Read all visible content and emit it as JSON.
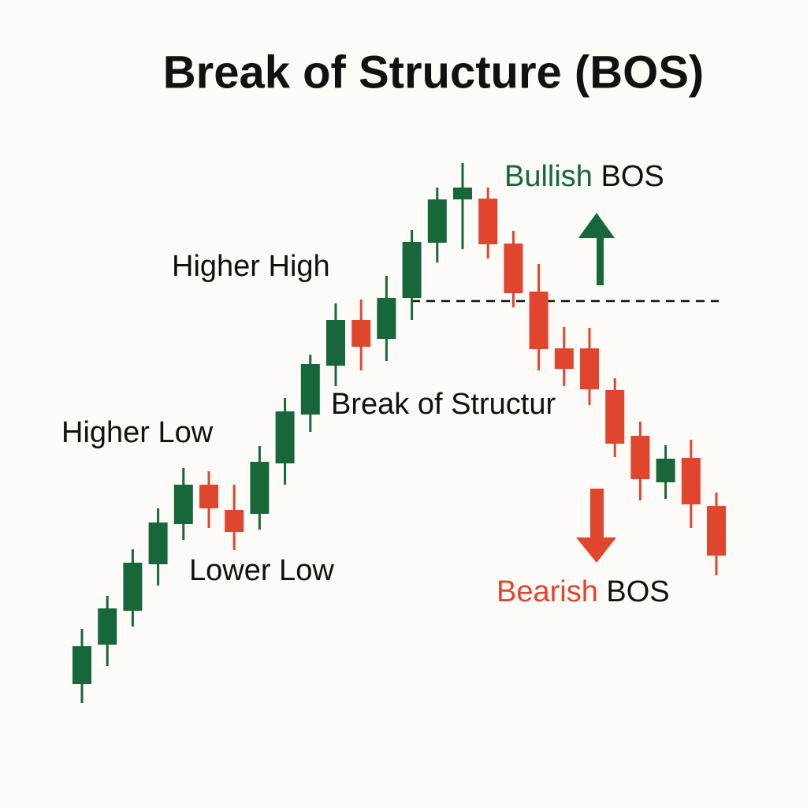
{
  "chart_data": {
    "type": "candlestick",
    "title": "Break of Structure (BOS)",
    "up_color": "#17673a",
    "down_color": "#e0452d",
    "ylim": [
      0,
      1000
    ],
    "candles": [
      {
        "open": 132,
        "high": 202,
        "low": 108,
        "close": 180
      },
      {
        "open": 182,
        "high": 244,
        "low": 155,
        "close": 228
      },
      {
        "open": 225,
        "high": 303,
        "low": 205,
        "close": 286
      },
      {
        "open": 284,
        "high": 355,
        "low": 257,
        "close": 337
      },
      {
        "open": 335,
        "high": 406,
        "low": 315,
        "close": 385
      },
      {
        "open": 385,
        "high": 402,
        "low": 330,
        "close": 355
      },
      {
        "open": 353,
        "high": 385,
        "low": 302,
        "close": 325
      },
      {
        "open": 348,
        "high": 434,
        "low": 328,
        "close": 414
      },
      {
        "open": 412,
        "high": 495,
        "low": 385,
        "close": 478
      },
      {
        "open": 474,
        "high": 550,
        "low": 452,
        "close": 538
      },
      {
        "open": 536,
        "high": 615,
        "low": 510,
        "close": 594
      },
      {
        "open": 594,
        "high": 620,
        "low": 530,
        "close": 560
      },
      {
        "open": 570,
        "high": 650,
        "low": 542,
        "close": 622
      },
      {
        "open": 622,
        "high": 708,
        "low": 594,
        "close": 693
      },
      {
        "open": 692,
        "high": 762,
        "low": 667,
        "close": 747
      },
      {
        "open": 747,
        "high": 793,
        "low": 684,
        "close": 762
      },
      {
        "open": 748,
        "high": 762,
        "low": 672,
        "close": 690
      },
      {
        "open": 691,
        "high": 707,
        "low": 610,
        "close": 628
      },
      {
        "open": 630,
        "high": 665,
        "low": 530,
        "close": 557
      },
      {
        "open": 558,
        "high": 585,
        "low": 510,
        "close": 532
      },
      {
        "open": 558,
        "high": 584,
        "low": 486,
        "close": 506
      },
      {
        "open": 505,
        "high": 520,
        "low": 420,
        "close": 437
      },
      {
        "open": 447,
        "high": 465,
        "low": 365,
        "close": 392
      },
      {
        "open": 388,
        "high": 435,
        "low": 367,
        "close": 418
      },
      {
        "open": 419,
        "high": 442,
        "low": 330,
        "close": 360
      },
      {
        "open": 358,
        "high": 375,
        "low": 270,
        "close": 295
      }
    ],
    "bos_level": 618,
    "annotations": {
      "higher_high": "Higher High",
      "higher_low": "Higher Low",
      "lower_low": "Lower Low",
      "break": "Break of Structur",
      "bullish": {
        "word": "Bullish",
        "rest": "BOS"
      },
      "bearish": {
        "word": "Bearish",
        "rest": "BOS"
      }
    }
  }
}
